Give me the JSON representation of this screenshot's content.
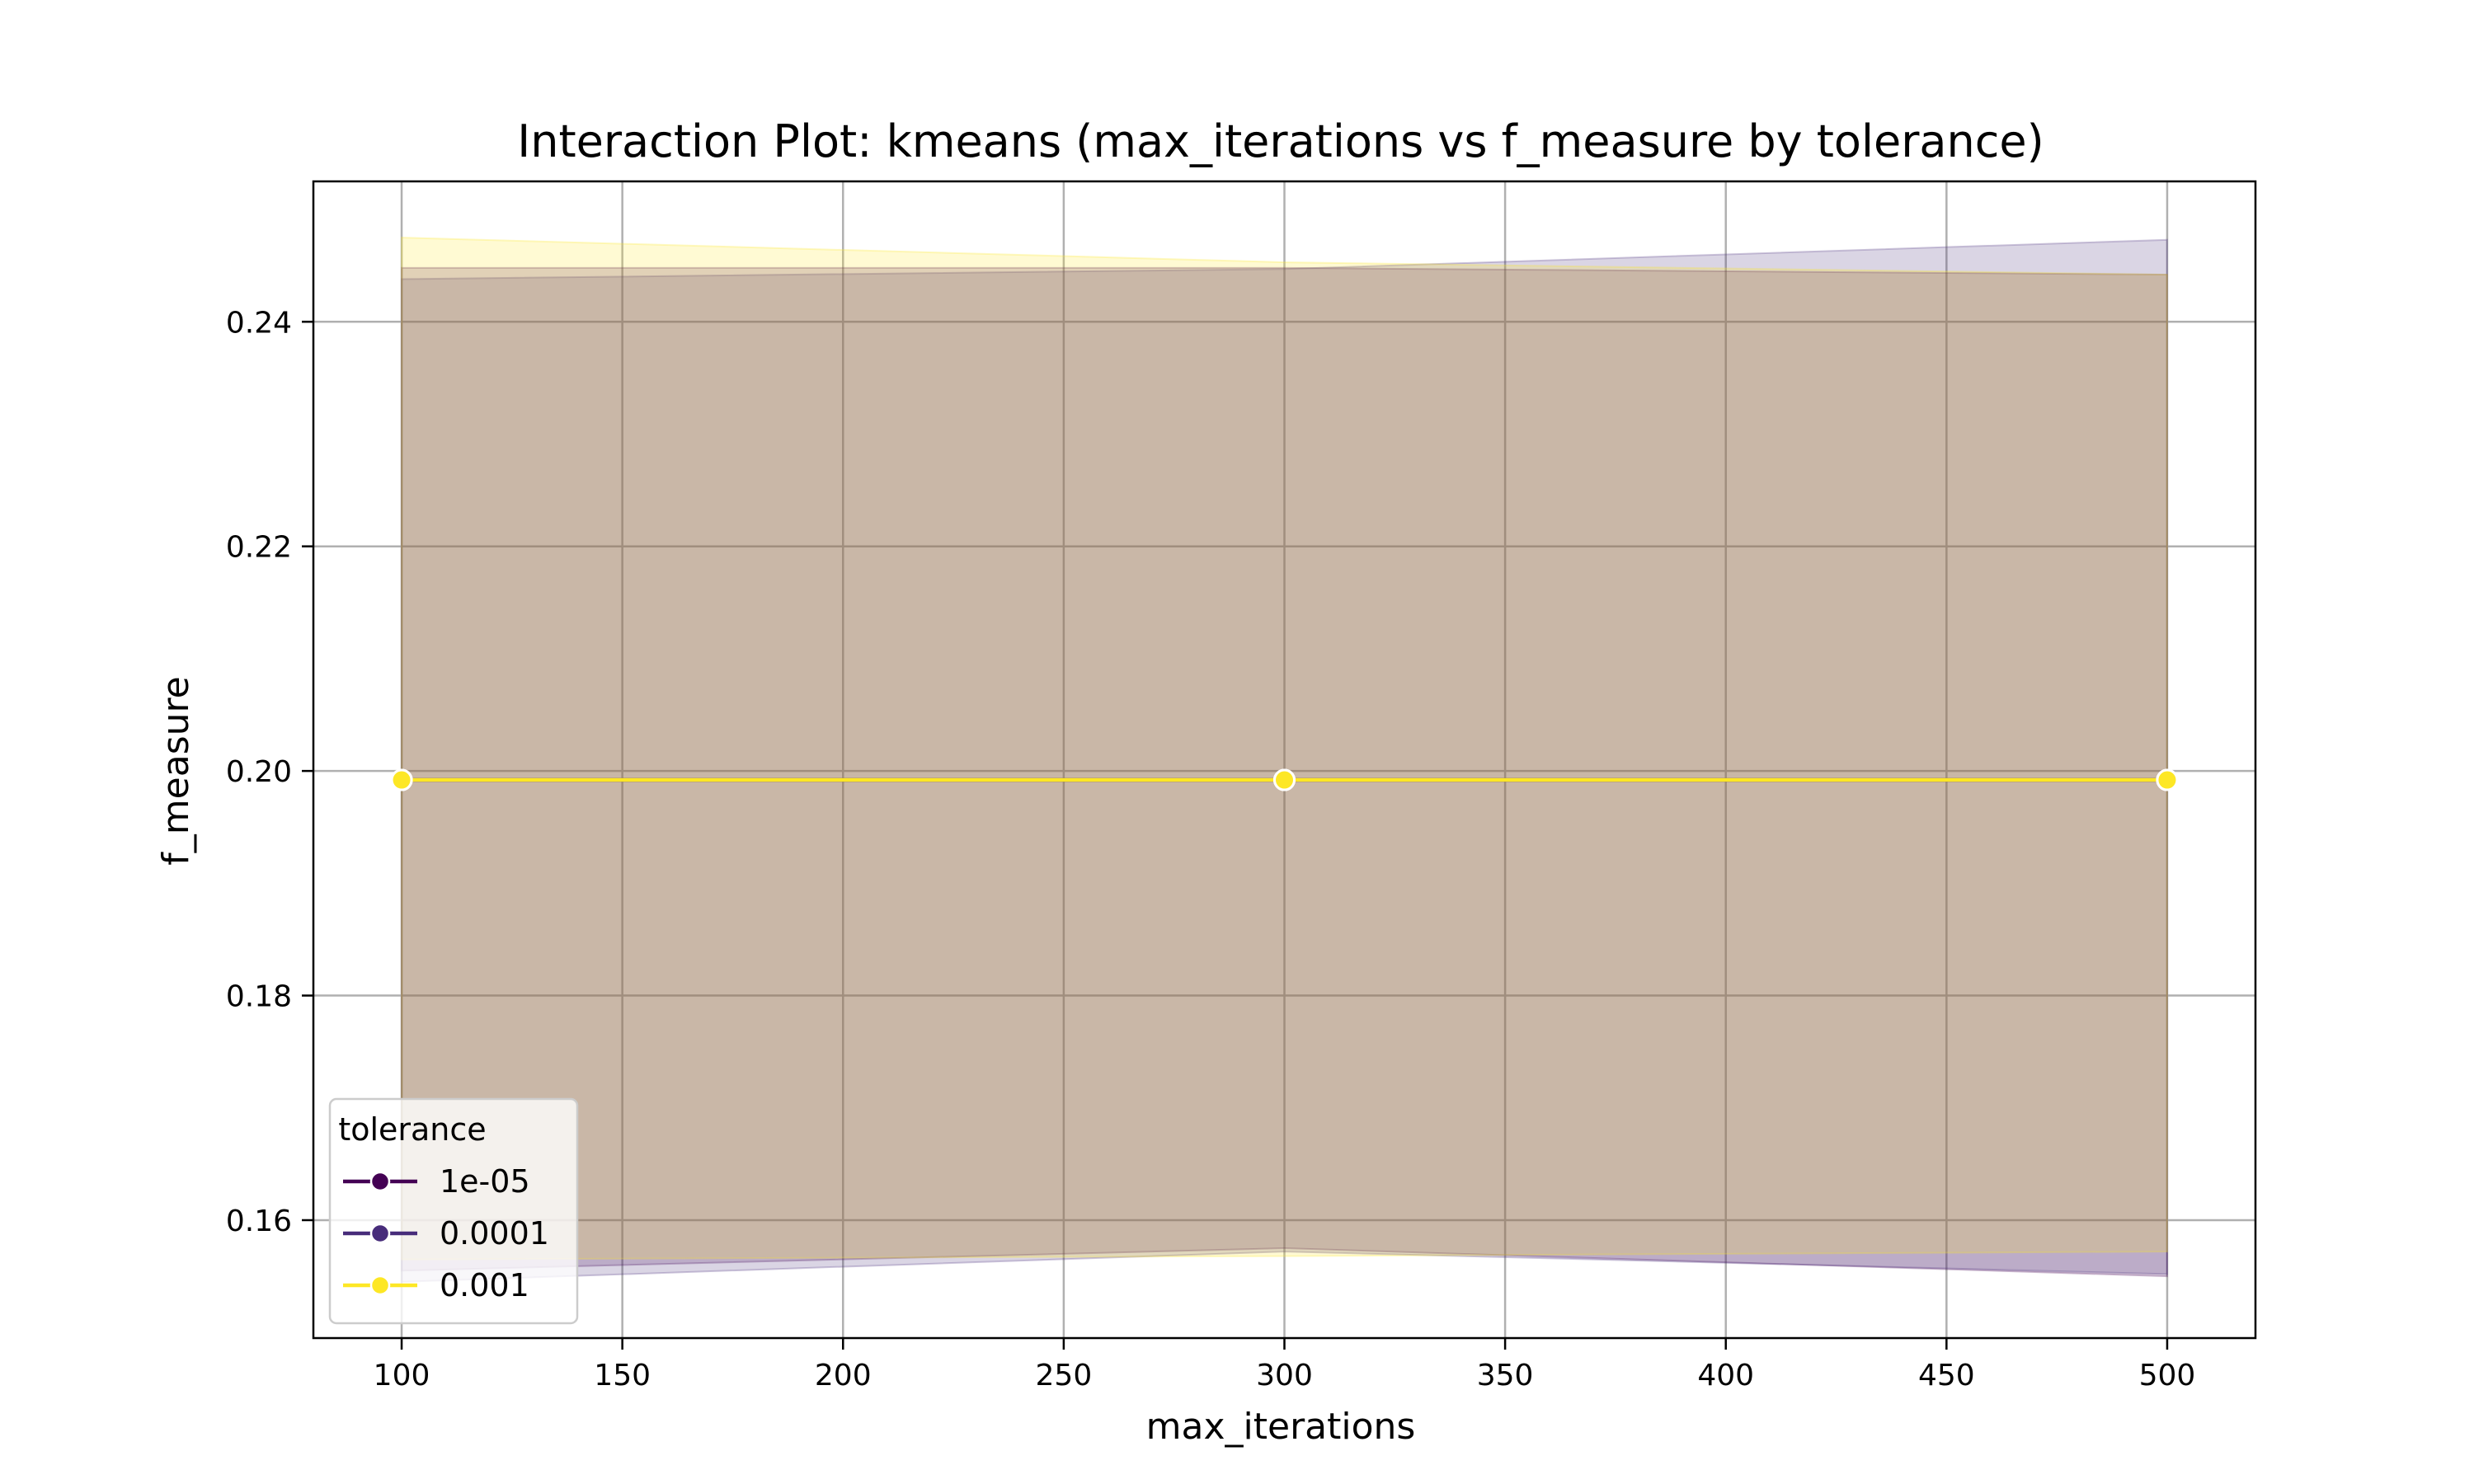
{
  "chart_data": {
    "type": "line",
    "title": "Interaction Plot: kmeans (max_iterations vs f_measure by tolerance)",
    "xlabel": "max_iterations",
    "ylabel": "f_measure",
    "xlim": [
      80,
      520
    ],
    "ylim": [
      0.1495,
      0.2525
    ],
    "x_ticks": [
      100,
      150,
      200,
      250,
      300,
      350,
      400,
      450,
      500
    ],
    "y_ticks": [
      0.16,
      0.18,
      0.2,
      0.22,
      0.24
    ],
    "y_tick_labels": [
      "0.16",
      "0.18",
      "0.20",
      "0.22",
      "0.24"
    ],
    "grid": true,
    "x": [
      100,
      300,
      500
    ],
    "series": [
      {
        "name": "1e-05",
        "color": "#440154",
        "values": [
          0.1992,
          0.1992,
          0.1992
        ],
        "ci_lower": [
          0.1555,
          0.1575,
          0.155
        ],
        "ci_upper": [
          0.2448,
          0.2448,
          0.2442
        ]
      },
      {
        "name": "0.0001",
        "color": "#472c7a",
        "values": [
          0.1992,
          0.1992,
          0.1992
        ],
        "ci_lower": [
          0.1545,
          0.1572,
          0.1552
        ],
        "ci_upper": [
          0.2438,
          0.2447,
          0.2473
        ]
      },
      {
        "name": "0.001",
        "color": "#fde725",
        "values": [
          0.1992,
          0.1992,
          0.1992
        ],
        "ci_lower": [
          0.1565,
          0.1568,
          0.1572
        ],
        "ci_upper": [
          0.2475,
          0.2453,
          0.2442
        ]
      }
    ],
    "legend": {
      "title": "tolerance",
      "position": "lower-left"
    }
  }
}
